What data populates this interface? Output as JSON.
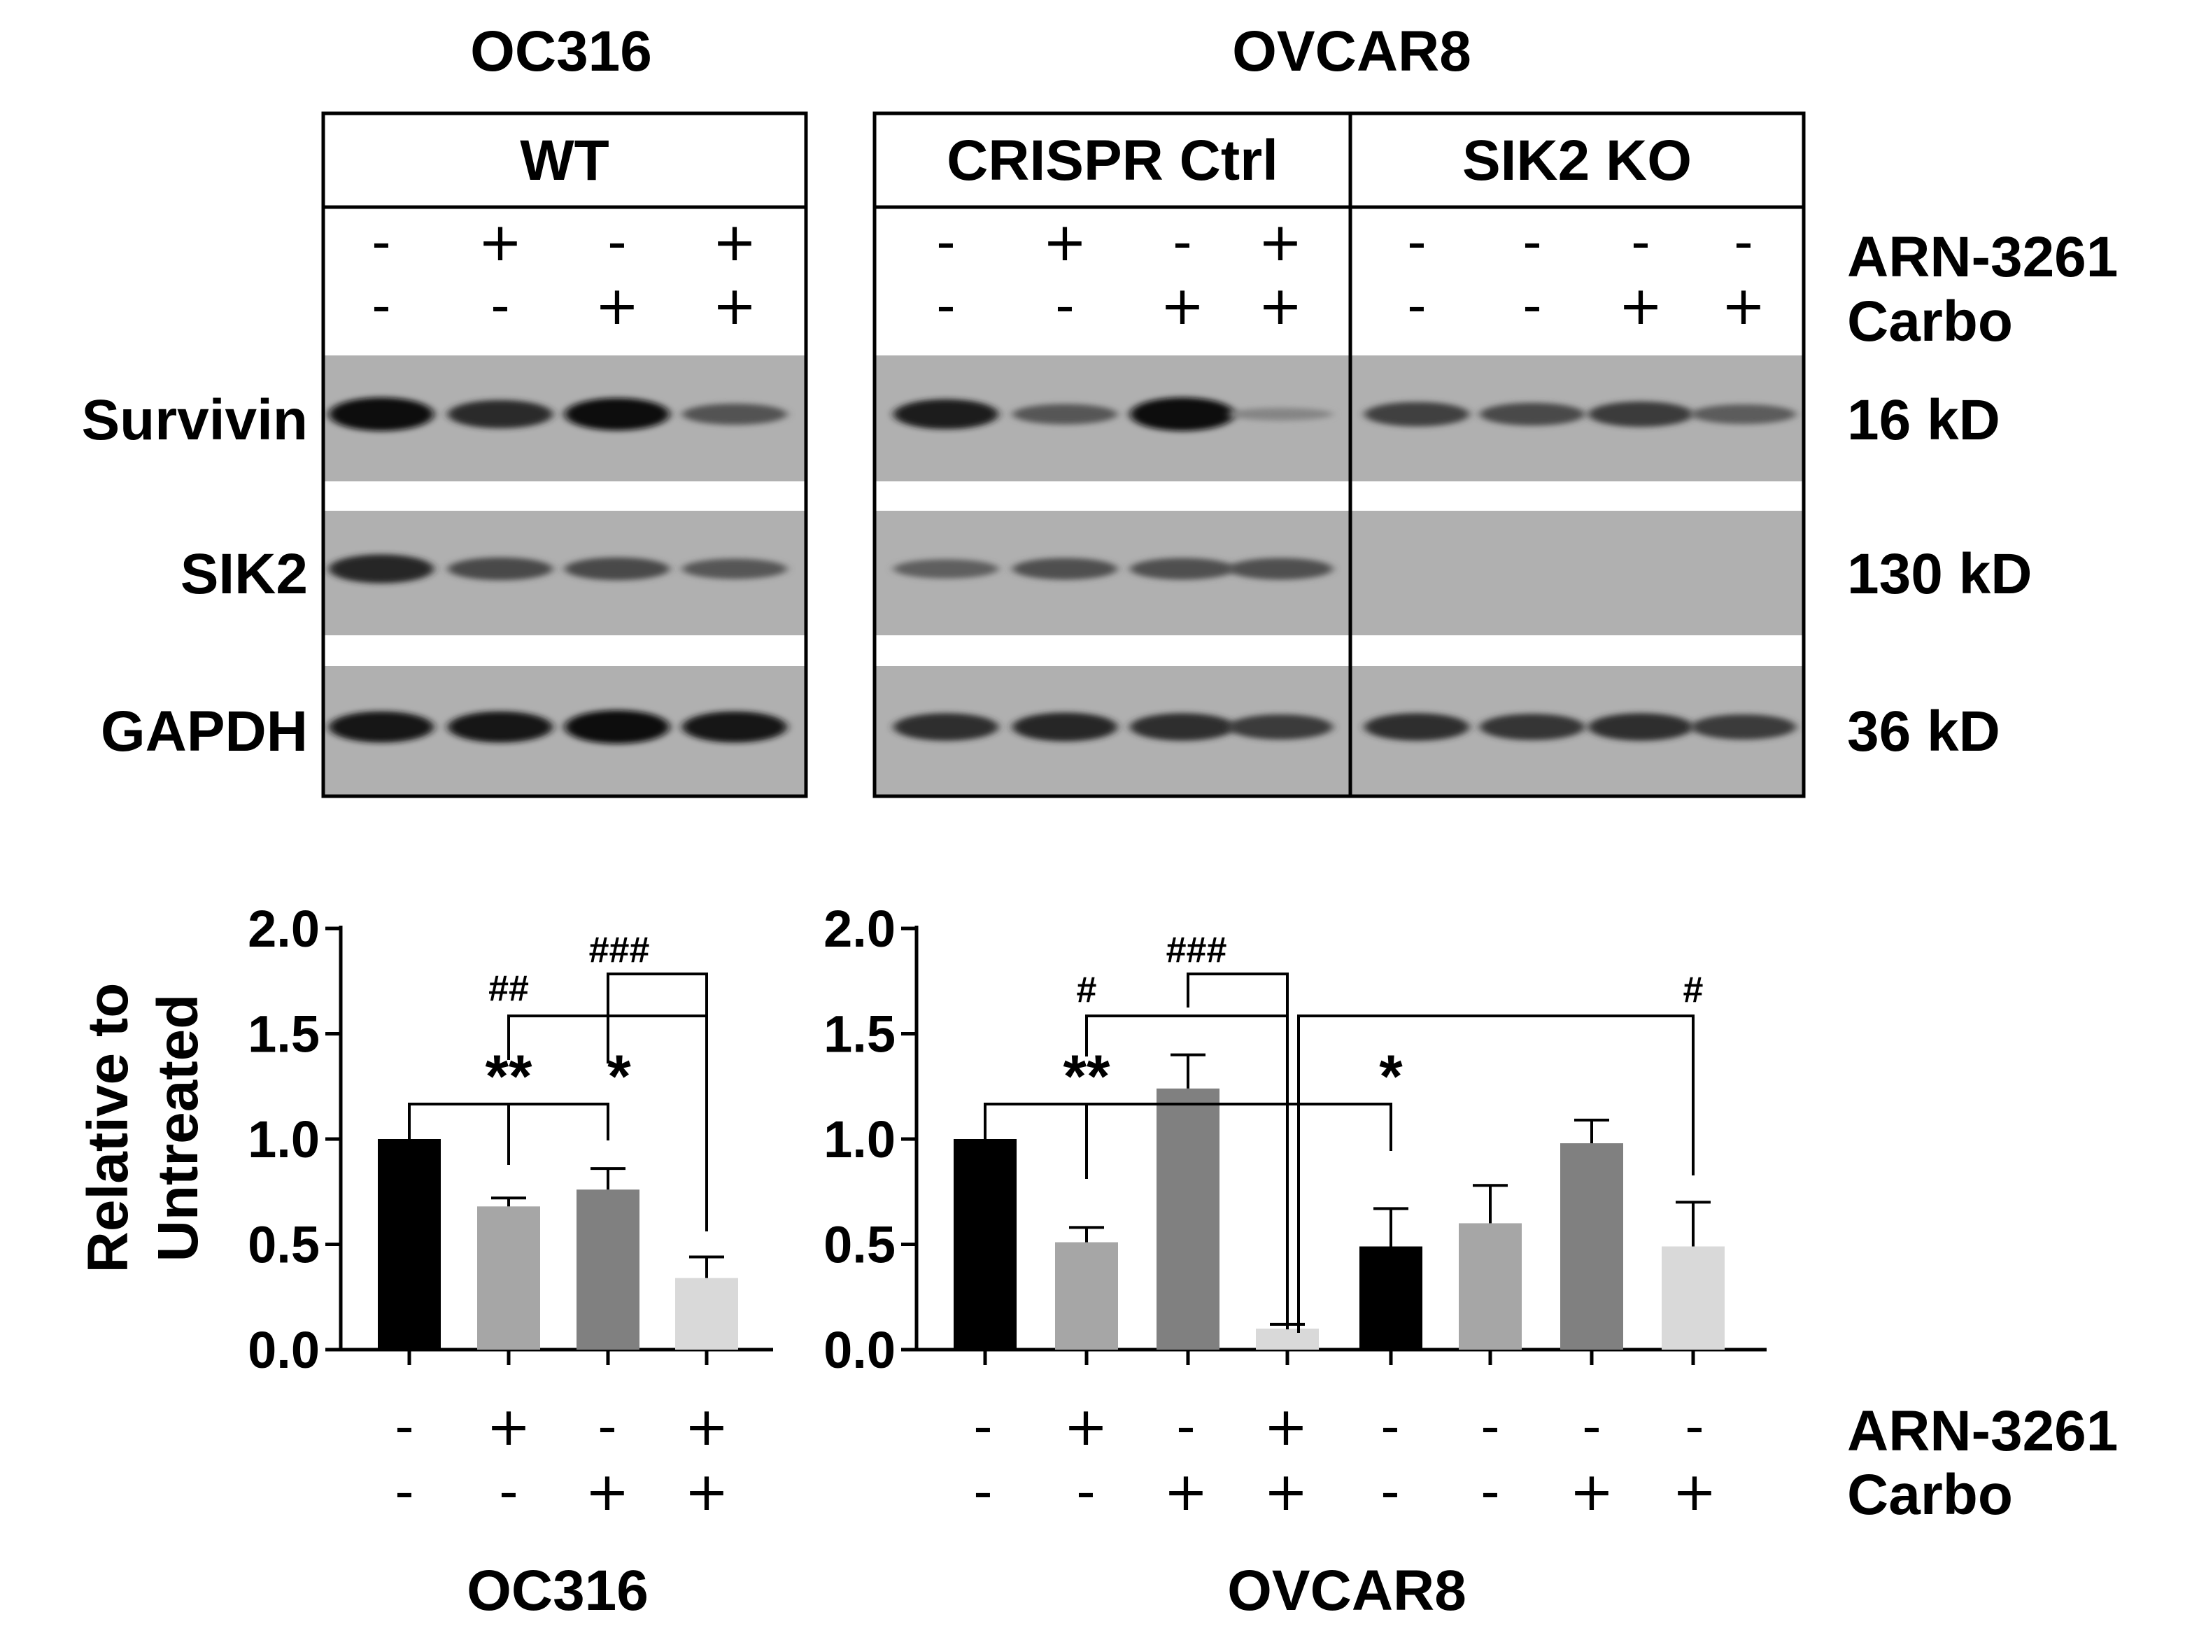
{
  "blot": {
    "cell_lines": [
      "OC316",
      "OVCAR8"
    ],
    "groups": [
      "WT",
      "CRISPR Ctrl",
      "SIK2 KO"
    ],
    "proteins": [
      {
        "name": "Survivin",
        "size": "16 kD",
        "intensity": {
          "OC316": [
            1.0,
            0.78,
            0.95,
            0.48
          ],
          "OVCAR8": [
            0.85,
            0.45,
            1.0,
            0.12,
            0.62,
            0.55,
            0.66,
            0.42
          ]
        }
      },
      {
        "name": "SIK2",
        "size": "130 kD",
        "intensity": {
          "OC316": [
            0.8,
            0.55,
            0.55,
            0.45
          ],
          "OVCAR8": [
            0.4,
            0.5,
            0.5,
            0.5,
            0.0,
            0.0,
            0.0,
            0.0
          ]
        }
      },
      {
        "name": "GAPDH",
        "size": "36 kD",
        "intensity": {
          "OC316": [
            0.9,
            0.9,
            1.0,
            0.9
          ],
          "OVCAR8": [
            0.75,
            0.8,
            0.75,
            0.65,
            0.75,
            0.7,
            0.75,
            0.65
          ]
        }
      }
    ],
    "treatments": [
      {
        "name": "ARN-3261",
        "OC316": [
          "-",
          "+",
          "-",
          "+"
        ],
        "OVCAR8": [
          "-",
          "+",
          "-",
          "+",
          "-",
          "-",
          "-",
          "-"
        ]
      },
      {
        "name": "Carbo",
        "OC316": [
          "-",
          "-",
          "+",
          "+"
        ],
        "OVCAR8": [
          "-",
          "-",
          "+",
          "+",
          "-",
          "-",
          "+",
          "+"
        ]
      }
    ]
  },
  "chart_data": [
    {
      "type": "bar",
      "title": "",
      "xlabel": "OC316",
      "ylabel": "Relative to\nUntreated",
      "ylim": [
        0,
        2.0
      ],
      "yticks": [
        "0.0",
        "0.5",
        "1.0",
        "1.5",
        "2.0"
      ],
      "treatments": {
        "ARN-3261": [
          "-",
          "+",
          "-",
          "+"
        ],
        "Carbo": [
          "-",
          "-",
          "+",
          "+"
        ]
      },
      "values": [
        1.0,
        0.68,
        0.76,
        0.34
      ],
      "errors": [
        0.0,
        0.04,
        0.1,
        0.1
      ],
      "colors": [
        "#000000",
        "#a6a6a6",
        "#808080",
        "#d9d9d9"
      ],
      "annotations": [
        "**",
        "*",
        "##",
        "###"
      ]
    },
    {
      "type": "bar",
      "title": "",
      "xlabel": "OVCAR8",
      "ylabel": "",
      "ylim": [
        0,
        2.0
      ],
      "yticks": [
        "0.0",
        "0.5",
        "1.0",
        "1.5",
        "2.0"
      ],
      "treatments": {
        "ARN-3261": [
          "-",
          "+",
          "-",
          "+",
          "-",
          "-",
          "-",
          "-"
        ],
        "Carbo": [
          "-",
          "-",
          "+",
          "+",
          "-",
          "-",
          "+",
          "+"
        ]
      },
      "values": [
        1.0,
        0.51,
        1.24,
        0.1,
        0.49,
        0.6,
        0.98,
        0.49
      ],
      "errors": [
        0.0,
        0.07,
        0.16,
        0.02,
        0.18,
        0.18,
        0.11,
        0.21
      ],
      "colors": [
        "#000000",
        "#a6a6a6",
        "#808080",
        "#d9d9d9",
        "#000000",
        "#a6a6a6",
        "#808080",
        "#d9d9d9"
      ],
      "annotations": [
        "**",
        "*",
        "#",
        "###",
        "#"
      ]
    }
  ]
}
